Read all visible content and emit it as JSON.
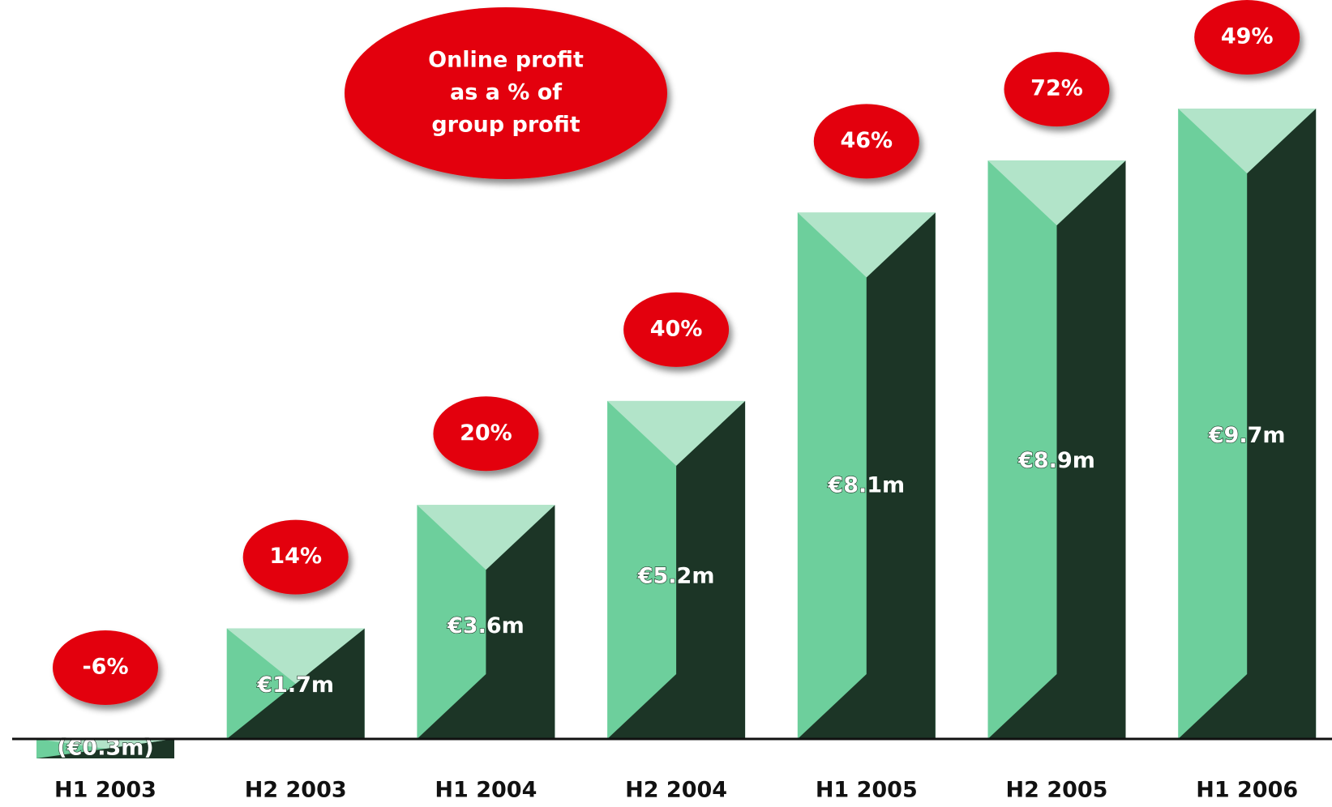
{
  "chart_data": {
    "type": "bar",
    "title": [
      "Online profit",
      "as a % of",
      "group profit"
    ],
    "categories": [
      "H1 2003",
      "H2 2003",
      "H1 2004",
      "H2 2004",
      "H1 2005",
      "H2 2005",
      "H1 2006"
    ],
    "values": [
      -0.3,
      1.7,
      3.6,
      5.2,
      8.1,
      8.9,
      9.7
    ],
    "value_labels": [
      "(€0.3m)",
      "€1.7m",
      "€3.6m",
      "€5.2m",
      "€8.1m",
      "€8.9m",
      "€9.7m"
    ],
    "colors": {
      "light": "#6dcf9c",
      "dark": "#1c3526",
      "top": "#b2e4c9",
      "badge": "#e3050b"
    },
    "shares": {
      "values": [
        -6,
        14,
        20,
        40,
        46,
        72,
        49
      ],
      "value_labels": [
        "-6%",
        "14%",
        "20%",
        "40%",
        "46%",
        "72%",
        "49%"
      ]
    }
  }
}
